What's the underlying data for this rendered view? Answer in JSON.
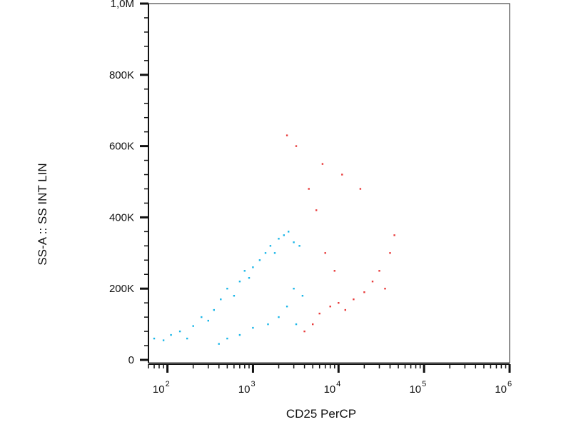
{
  "chart_data": {
    "type": "scatter",
    "title": "",
    "xlabel": "CD25 PerCP",
    "ylabel": "SS-A :: SS INT LIN",
    "x_scale": "log",
    "xlim": [
      60,
      1000000
    ],
    "ylim": [
      -8000,
      1000000
    ],
    "x_ticks": [
      {
        "base": "10",
        "exp": "2"
      },
      {
        "base": "10",
        "exp": "3"
      },
      {
        "base": "10",
        "exp": "4"
      },
      {
        "base": "10",
        "exp": "5"
      },
      {
        "base": "10",
        "exp": "6"
      }
    ],
    "y_ticks": [
      {
        "value": 0,
        "label": "0"
      },
      {
        "value": 200000,
        "label": "200K"
      },
      {
        "value": 400000,
        "label": "400K"
      },
      {
        "value": 600000,
        "label": "600K"
      },
      {
        "value": 800000,
        "label": "800K"
      },
      {
        "value": 1000000,
        "label": "1,0M"
      }
    ],
    "grid": false,
    "legend": "none",
    "series": [
      {
        "color": "#19b6e8",
        "points": [
          [
            70,
            60000
          ],
          [
            90,
            55000
          ],
          [
            110,
            70000
          ],
          [
            140,
            80000
          ],
          [
            170,
            60000
          ],
          [
            200,
            95000
          ],
          [
            250,
            120000
          ],
          [
            300,
            110000
          ],
          [
            350,
            140000
          ],
          [
            420,
            170000
          ],
          [
            500,
            200000
          ],
          [
            600,
            180000
          ],
          [
            700,
            220000
          ],
          [
            800,
            250000
          ],
          [
            900,
            230000
          ],
          [
            1000,
            260000
          ],
          [
            1200,
            280000
          ],
          [
            1400,
            300000
          ],
          [
            1600,
            320000
          ],
          [
            1800,
            300000
          ],
          [
            2000,
            340000
          ],
          [
            2300,
            350000
          ],
          [
            2600,
            360000
          ],
          [
            3000,
            330000
          ],
          [
            3500,
            320000
          ],
          [
            2500,
            150000
          ],
          [
            2000,
            120000
          ],
          [
            1500,
            100000
          ],
          [
            1000,
            90000
          ],
          [
            700,
            70000
          ],
          [
            500,
            60000
          ],
          [
            400,
            45000
          ],
          [
            3000,
            200000
          ],
          [
            3800,
            180000
          ],
          [
            3200,
            100000
          ]
        ]
      },
      {
        "color": "#e83a3a",
        "points": [
          [
            4000,
            80000
          ],
          [
            5000,
            100000
          ],
          [
            6000,
            130000
          ],
          [
            8000,
            150000
          ],
          [
            10000,
            160000
          ],
          [
            12000,
            140000
          ],
          [
            15000,
            170000
          ],
          [
            20000,
            190000
          ],
          [
            25000,
            220000
          ],
          [
            30000,
            250000
          ],
          [
            35000,
            200000
          ],
          [
            40000,
            300000
          ],
          [
            45000,
            350000
          ],
          [
            9000,
            250000
          ],
          [
            7000,
            300000
          ],
          [
            5500,
            420000
          ],
          [
            4500,
            480000
          ],
          [
            6500,
            550000
          ],
          [
            3200,
            600000
          ],
          [
            2500,
            630000
          ],
          [
            11000,
            520000
          ],
          [
            18000,
            480000
          ]
        ]
      }
    ]
  }
}
